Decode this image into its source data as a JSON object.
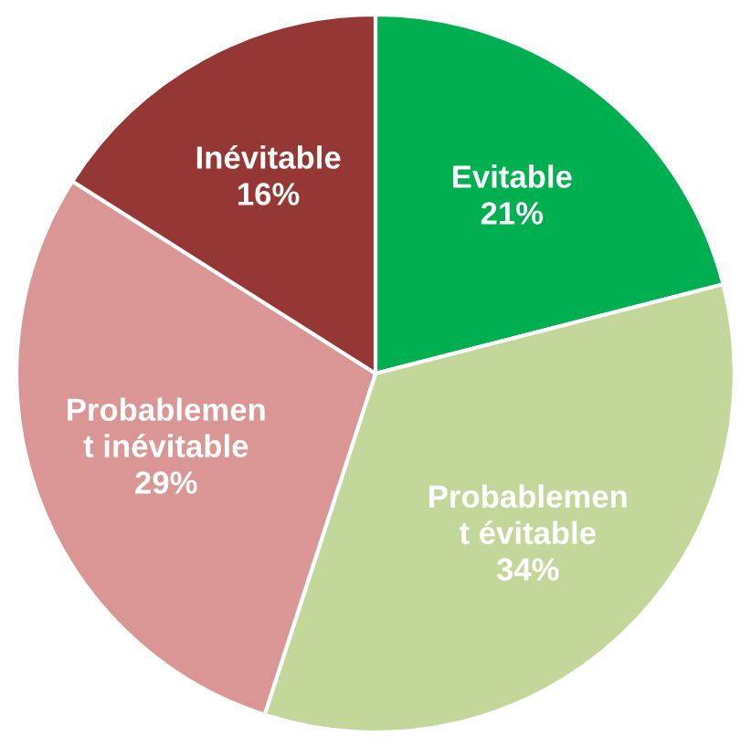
{
  "chart_data": {
    "type": "pie",
    "categories": [
      "Evitable",
      "Probablemen\nt évitable",
      "Probablemen\nt inévitable",
      "Inévitable"
    ],
    "values": [
      21,
      34,
      29,
      16
    ],
    "value_labels": [
      "21%",
      "34%",
      "29%",
      "16%"
    ],
    "colors": [
      "#00b050",
      "#c4d79b",
      "#d99694",
      "#953735"
    ]
  }
}
